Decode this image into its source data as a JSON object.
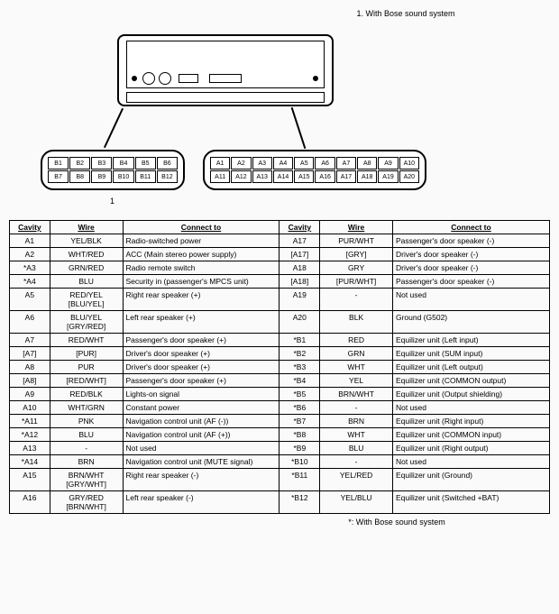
{
  "notes": {
    "top": "1. With Bose sound system",
    "bottom": "*: With Bose sound system"
  },
  "connectors": {
    "A": {
      "label": "1",
      "pinsRow1": [
        "B1",
        "B2",
        "B3",
        "B4",
        "B5",
        "B6"
      ],
      "pinsRow2": [
        "B7",
        "B8",
        "B9",
        "B10",
        "B11",
        "B12"
      ]
    },
    "B": {
      "pinsRow1": [
        "A1",
        "A2",
        "A3",
        "A4",
        "A5",
        "A6",
        "A7",
        "A8",
        "A9",
        "A10"
      ],
      "pinsRow2": [
        "A11",
        "A12",
        "A13",
        "A14",
        "A15",
        "A16",
        "A17",
        "A18",
        "A19",
        "A20"
      ]
    }
  },
  "table": {
    "headers": {
      "cavity": "Cavity",
      "wire": "Wire",
      "connect": "Connect to"
    },
    "rows": [
      {
        "l": {
          "cav": "A1",
          "wire": "YEL/BLK",
          "conn": "Radio-switched power"
        },
        "r": {
          "cav": "A17",
          "wire": "PUR/WHT",
          "conn": "Passenger's door speaker (-)"
        }
      },
      {
        "l": {
          "cav": "A2",
          "wire": "WHT/RED",
          "conn": "ACC (Main stereo power supply)"
        },
        "r": {
          "cav": "[A17]",
          "wire": "[GRY]",
          "conn": "Driver's door speaker (-)"
        }
      },
      {
        "l": {
          "cav": "*A3",
          "wire": "GRN/RED",
          "conn": "Radio remote switch"
        },
        "r": {
          "cav": "A18",
          "wire": "GRY",
          "conn": "Driver's door speaker (-)"
        }
      },
      {
        "l": {
          "cav": "*A4",
          "wire": "BLU",
          "conn": "Security in (passenger's MPCS unit)"
        },
        "r": {
          "cav": "[A18]",
          "wire": "[PUR/WHT]",
          "conn": "Passenger's door speaker (-)"
        }
      },
      {
        "l": {
          "cav": "A5",
          "wire": "RED/YEL [BLU/YEL]",
          "conn": "Right rear speaker (+)"
        },
        "r": {
          "cav": "A19",
          "wire": "-",
          "conn": "Not used"
        }
      },
      {
        "l": {
          "cav": "A6",
          "wire": "BLU/YEL [GRY/RED]",
          "conn": "Left rear speaker (+)"
        },
        "r": {
          "cav": "A20",
          "wire": "BLK",
          "conn": "Ground (G502)"
        }
      },
      {
        "l": {
          "cav": "A7",
          "wire": "RED/WHT",
          "conn": "Passenger's door speaker (+)"
        },
        "r": {
          "cav": "*B1",
          "wire": "RED",
          "conn": "Equilizer unit (Left input)"
        }
      },
      {
        "l": {
          "cav": "[A7]",
          "wire": "[PUR]",
          "conn": "Driver's door speaker (+)"
        },
        "r": {
          "cav": "*B2",
          "wire": "GRN",
          "conn": "Equilizer unit (SUM input)"
        }
      },
      {
        "l": {
          "cav": "A8",
          "wire": "PUR",
          "conn": "Driver's door speaker (+)"
        },
        "r": {
          "cav": "*B3",
          "wire": "WHT",
          "conn": "Equilizer unit (Left output)"
        }
      },
      {
        "l": {
          "cav": "[A8]",
          "wire": "[RED/WHT]",
          "conn": "Passenger's door speaker (+)"
        },
        "r": {
          "cav": "*B4",
          "wire": "YEL",
          "conn": "Equilizer unit (COMMON output)"
        }
      },
      {
        "l": {
          "cav": "A9",
          "wire": "RED/BLK",
          "conn": "Lights-on signal"
        },
        "r": {
          "cav": "*B5",
          "wire": "BRN/WHT",
          "conn": "Equilizer unit (Output shielding)"
        }
      },
      {
        "l": {
          "cav": "A10",
          "wire": "WHT/GRN",
          "conn": "Constant power"
        },
        "r": {
          "cav": "*B6",
          "wire": "-",
          "conn": "Not used"
        }
      },
      {
        "l": {
          "cav": "*A11",
          "wire": "PNK",
          "conn": "Navigation control unit (AF (-))"
        },
        "r": {
          "cav": "*B7",
          "wire": "BRN",
          "conn": "Equilizer unit (Right input)"
        }
      },
      {
        "l": {
          "cav": "*A12",
          "wire": "BLU",
          "conn": "Navigation control unit (AF (+))"
        },
        "r": {
          "cav": "*B8",
          "wire": "WHT",
          "conn": "Equilizer unit (COMMON input)"
        }
      },
      {
        "l": {
          "cav": "A13",
          "wire": "-",
          "conn": "Not used"
        },
        "r": {
          "cav": "*B9",
          "wire": "BLU",
          "conn": "Equilizer unit (Right output)"
        }
      },
      {
        "l": {
          "cav": "*A14",
          "wire": "BRN",
          "conn": "Navigation control unit (MUTE signal)"
        },
        "r": {
          "cav": "*B10",
          "wire": "-",
          "conn": "Not used"
        }
      },
      {
        "l": {
          "cav": "A15",
          "wire": "BRN/WHT [GRY/WHT]",
          "conn": "Right rear speaker (-)"
        },
        "r": {
          "cav": "*B11",
          "wire": "YEL/RED",
          "conn": "Equilizer unit (Ground)"
        }
      },
      {
        "l": {
          "cav": "A16",
          "wire": "GRY/RED [BRN/WHT]",
          "conn": "Left rear speaker (-)"
        },
        "r": {
          "cav": "*B12",
          "wire": "YEL/BLU",
          "conn": "Equilizer unit (Switched +BAT)"
        }
      }
    ]
  }
}
